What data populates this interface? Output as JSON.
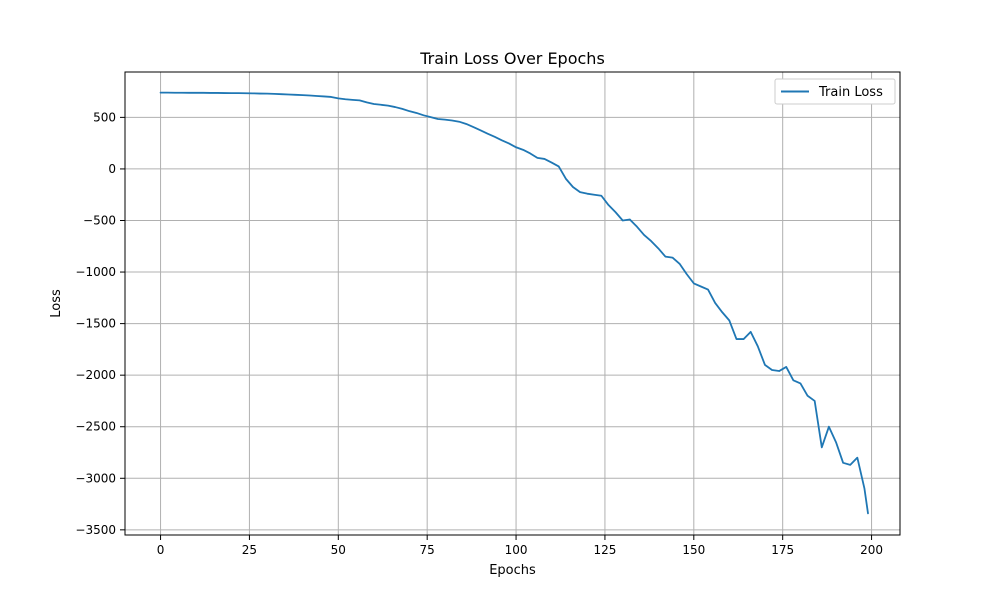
{
  "chart_data": {
    "type": "line",
    "title": "Train Loss Over Epochs",
    "xlabel": "Epochs",
    "ylabel": "Loss",
    "xlim": [
      -10,
      208
    ],
    "ylim": [
      -3550,
      940
    ],
    "xticks": [
      0,
      25,
      50,
      75,
      100,
      125,
      150,
      175,
      200
    ],
    "yticks": [
      500,
      0,
      -500,
      -1000,
      -1500,
      -2000,
      -2500,
      -3000,
      -3500
    ],
    "grid": true,
    "legend_position": "top-right",
    "series": [
      {
        "name": "Train Loss",
        "color": "#1f77b4",
        "x": [
          0,
          2,
          4,
          6,
          8,
          10,
          12,
          14,
          16,
          18,
          20,
          22,
          24,
          26,
          28,
          30,
          32,
          34,
          36,
          38,
          40,
          42,
          44,
          46,
          48,
          50,
          52,
          54,
          56,
          58,
          60,
          62,
          64,
          66,
          68,
          70,
          72,
          74,
          76,
          78,
          80,
          82,
          84,
          86,
          88,
          90,
          92,
          94,
          96,
          98,
          100,
          102,
          104,
          106,
          108,
          110,
          112,
          114,
          116,
          118,
          120,
          122,
          124,
          126,
          128,
          130,
          132,
          134,
          136,
          138,
          140,
          142,
          144,
          146,
          148,
          150,
          152,
          154,
          156,
          158,
          160,
          162,
          164,
          166,
          168,
          170,
          172,
          174,
          176,
          178,
          180,
          182,
          184,
          186,
          188,
          190,
          192,
          194,
          196,
          198,
          199
        ],
        "y": [
          740,
          740,
          739,
          739,
          738,
          738,
          738,
          737,
          737,
          736,
          735,
          735,
          734,
          733,
          731,
          730,
          728,
          725,
          722,
          719,
          716,
          712,
          707,
          703,
          698,
          684,
          676,
          670,
          665,
          646,
          630,
          622,
          614,
          600,
          582,
          560,
          543,
          520,
          502,
          484,
          478,
          470,
          458,
          436,
          406,
          375,
          342,
          311,
          278,
          247,
          210,
          185,
          150,
          107,
          97,
          62,
          24,
          -95,
          -175,
          -225,
          -240,
          -250,
          -260,
          -350,
          -420,
          -500,
          -490,
          -560,
          -640,
          -700,
          -770,
          -850,
          -860,
          -920,
          -1020,
          -1110,
          -1140,
          -1170,
          -1300,
          -1390,
          -1470,
          -1650,
          -1650,
          -1580,
          -1720,
          -1900,
          -1950,
          -1960,
          -1920,
          -2050,
          -2080,
          -2200,
          -2250,
          -2700,
          -2500,
          -2650,
          -2850,
          -2870,
          -2800,
          -3100,
          -3340
        ]
      }
    ]
  }
}
